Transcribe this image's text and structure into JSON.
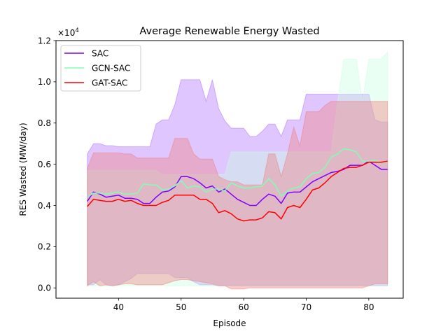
{
  "chart_data": {
    "type": "line",
    "title": "Average Renewable Energy Wasted",
    "xlabel": "Episode",
    "ylabel": "RES Wasted (MW/day)",
    "y_multiplier_label": "×10",
    "y_multiplier_exponent": "4",
    "xlim": [
      30,
      85.5
    ],
    "ylim": [
      -500,
      12000
    ],
    "xticks": [
      40,
      50,
      60,
      70,
      80
    ],
    "yticks": [
      0,
      2000,
      4000,
      6000,
      8000,
      10000,
      12000
    ],
    "ytick_labels": [
      "0.0",
      "0.2",
      "0.4",
      "0.6",
      "0.8",
      "1.0",
      "1.2"
    ],
    "grid": false,
    "legend_position": "top-left",
    "x": [
      35,
      36,
      37,
      38,
      39,
      40,
      41,
      42,
      43,
      44,
      45,
      46,
      47,
      48,
      49,
      50,
      51,
      52,
      53,
      54,
      55,
      56,
      57,
      58,
      59,
      60,
      61,
      62,
      63,
      64,
      65,
      66,
      67,
      68,
      69,
      70,
      71,
      72,
      73,
      74,
      75,
      76,
      77,
      78,
      79,
      80,
      81,
      82,
      83
    ],
    "series": [
      {
        "name": "SAC",
        "color": "#8000ff",
        "band_color": "#b070ff",
        "mean": [
          4200,
          4650,
          4550,
          4400,
          4450,
          4500,
          4350,
          4350,
          4300,
          4100,
          4100,
          4400,
          4650,
          4700,
          4900,
          5400,
          5400,
          5300,
          5100,
          4850,
          4950,
          4650,
          4800,
          4550,
          4300,
          4150,
          4000,
          4000,
          4300,
          4550,
          4450,
          4100,
          4600,
          4650,
          4650,
          4900,
          5150,
          5300,
          5450,
          5600,
          5650,
          5750,
          5950,
          5950,
          5950,
          6150,
          5950,
          5750,
          5750
        ],
        "upper": [
          6500,
          7000,
          7000,
          6900,
          6900,
          6850,
          6850,
          6850,
          6850,
          6850,
          6850,
          7950,
          8150,
          8150,
          8900,
          10100,
          10100,
          10100,
          10100,
          9050,
          10100,
          8700,
          8100,
          7750,
          7750,
          7750,
          7350,
          7350,
          7600,
          7950,
          7950,
          7350,
          8150,
          8150,
          8150,
          9400,
          9400,
          9400,
          9400,
          9400,
          9400,
          9400,
          9400,
          9400,
          9400,
          9400,
          8150,
          8050,
          8050
        ],
        "lower": [
          150,
          150,
          400,
          150,
          100,
          150,
          300,
          450,
          700,
          700,
          700,
          700,
          700,
          700,
          500,
          500,
          500,
          300,
          150,
          150,
          150,
          100,
          100,
          100,
          100,
          100,
          100,
          100,
          100,
          100,
          100,
          100,
          100,
          100,
          100,
          100,
          100,
          100,
          100,
          100,
          100,
          100,
          100,
          100,
          100,
          100,
          100,
          100,
          100
        ]
      },
      {
        "name": "GCN-SAC",
        "color": "#80ffb4",
        "band_color": "#c8ffe0",
        "mean": [
          4400,
          4600,
          4600,
          4550,
          4600,
          4650,
          4550,
          4550,
          4600,
          5050,
          5000,
          5000,
          4750,
          4800,
          4950,
          5200,
          4850,
          4950,
          4900,
          4650,
          4800,
          4800,
          4700,
          5100,
          4950,
          4850,
          4850,
          4900,
          4950,
          5300,
          5000,
          4450,
          4700,
          4850,
          4900,
          5300,
          5550,
          5600,
          5850,
          6350,
          6500,
          6750,
          6700,
          6600,
          6150,
          6150,
          6200,
          6100,
          6100
        ],
        "upper": [
          5700,
          5700,
          5700,
          5700,
          5700,
          5700,
          5700,
          5700,
          5700,
          5700,
          5700,
          5700,
          5500,
          5500,
          5500,
          5500,
          5500,
          5500,
          5500,
          5500,
          5500,
          5500,
          5500,
          6600,
          6600,
          6600,
          6600,
          6600,
          6600,
          6600,
          6600,
          6600,
          6600,
          6600,
          6600,
          6600,
          6600,
          6600,
          6600,
          6600,
          9000,
          11100,
          11100,
          11100,
          9000,
          11100,
          11100,
          11100,
          11450
        ],
        "lower": [
          100,
          100,
          100,
          100,
          100,
          100,
          100,
          100,
          100,
          100,
          100,
          100,
          100,
          100,
          100,
          100,
          100,
          100,
          100,
          100,
          100,
          100,
          100,
          100,
          100,
          100,
          100,
          100,
          100,
          100,
          100,
          100,
          100,
          100,
          100,
          100,
          100,
          100,
          100,
          100,
          100,
          100,
          100,
          100,
          100,
          100,
          100,
          100,
          100
        ]
      },
      {
        "name": "GAT-SAC",
        "color": "#ff0000",
        "band_color": "#f08080",
        "mean": [
          3950,
          4300,
          4250,
          4200,
          4200,
          4300,
          4200,
          4250,
          4100,
          4000,
          4000,
          4000,
          4150,
          4250,
          4500,
          4500,
          4500,
          4500,
          4300,
          4300,
          4100,
          3650,
          3750,
          3600,
          3350,
          3250,
          3300,
          3300,
          3400,
          3700,
          3650,
          3350,
          3900,
          4000,
          3900,
          4300,
          4750,
          4850,
          5100,
          5400,
          5600,
          5800,
          5850,
          5850,
          5950,
          6100,
          6100,
          6100,
          6150
        ],
        "upper": [
          5800,
          6550,
          6550,
          6550,
          6550,
          6550,
          6500,
          6500,
          6300,
          6300,
          6300,
          6300,
          6300,
          6300,
          7250,
          7250,
          7250,
          6500,
          6250,
          6250,
          6250,
          5400,
          5250,
          5150,
          5150,
          5000,
          5000,
          5000,
          5000,
          6500,
          6500,
          5400,
          6500,
          7800,
          6900,
          8550,
          8550,
          8550,
          8850,
          9050,
          9050,
          9050,
          9050,
          9050,
          9050,
          9050,
          9050,
          9050,
          9050
        ],
        "lower": [
          100,
          300,
          100,
          150,
          100,
          150,
          200,
          200,
          150,
          150,
          150,
          150,
          150,
          250,
          350,
          400,
          400,
          350,
          300,
          250,
          200,
          100,
          100,
          -50,
          -50,
          -50,
          0,
          0,
          0,
          0,
          0,
          0,
          0,
          0,
          0,
          0,
          0,
          0,
          0,
          0,
          0,
          0,
          0,
          0,
          0,
          100,
          200,
          200,
          200
        ]
      }
    ]
  }
}
